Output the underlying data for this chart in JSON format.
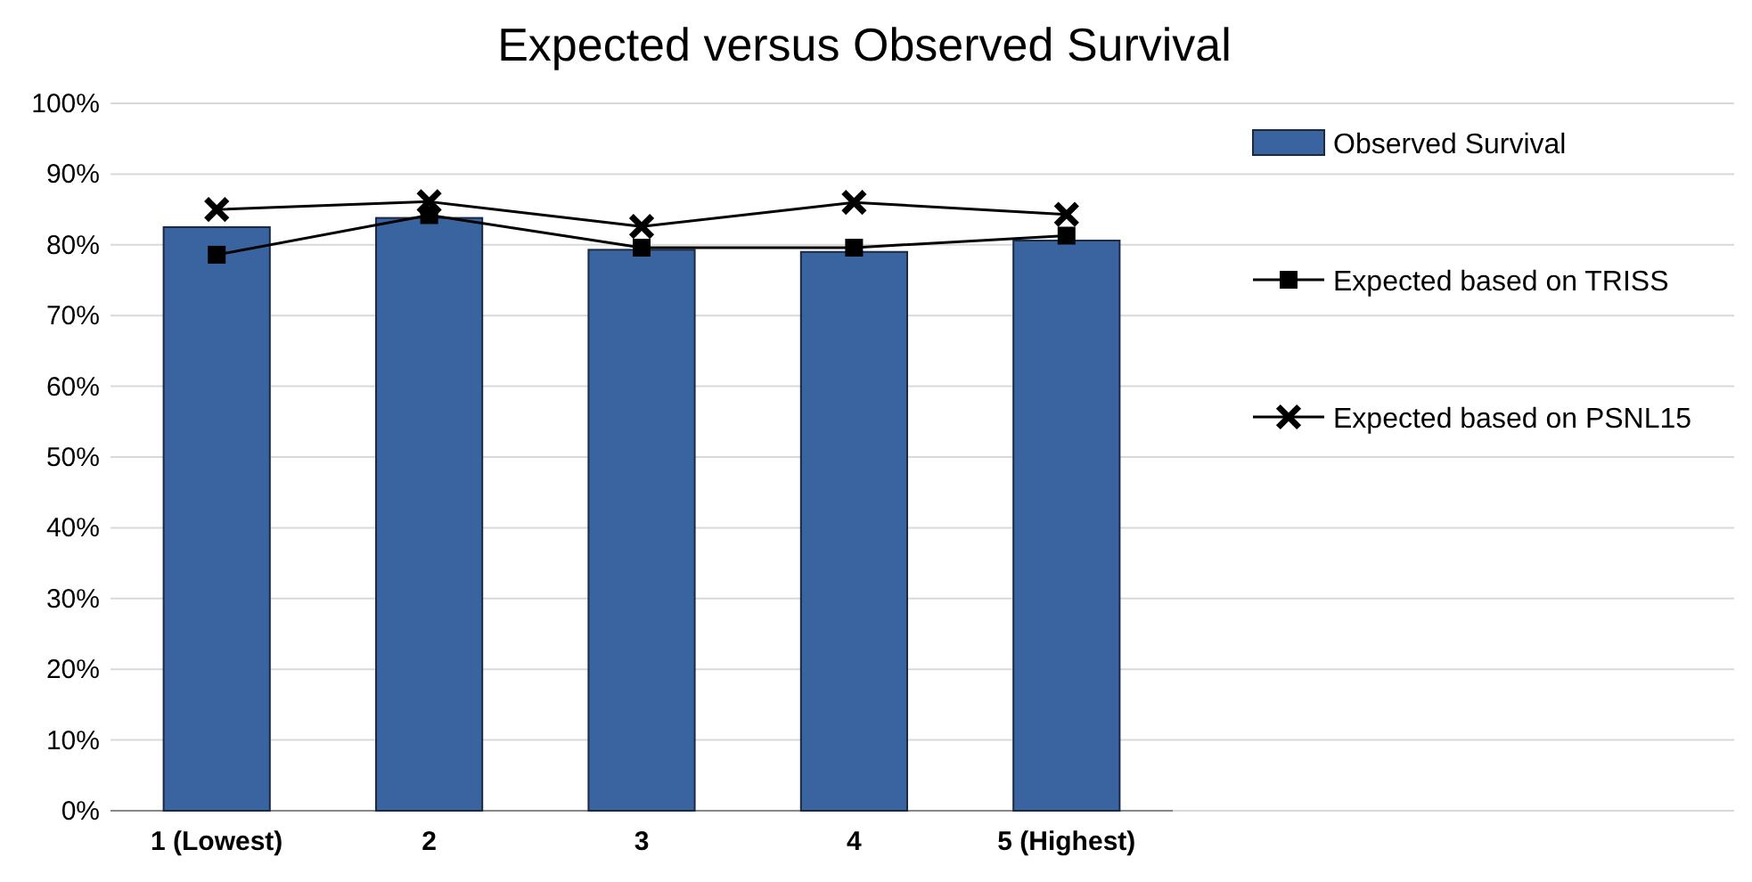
{
  "chart_data": {
    "type": "bar",
    "title": "Expected versus Observed Survival",
    "categories": [
      "1 (Lowest)",
      "2",
      "3",
      "4",
      "5 (Highest)"
    ],
    "series": [
      {
        "name": "Observed Survival",
        "color": "#3a64a0",
        "values": [
          82.5,
          83.8,
          79.3,
          79.0,
          80.6
        ]
      },
      {
        "name": "Expected based on TRISS",
        "type": "line",
        "color": "#000000",
        "marker": "square",
        "values": [
          78.6,
          84.2,
          79.6,
          79.6,
          81.3
        ]
      },
      {
        "name": "Expected based on PSNL15",
        "type": "line",
        "color": "#000000",
        "marker": "cross",
        "values": [
          85.0,
          86.1,
          82.6,
          86.0,
          84.3
        ]
      }
    ],
    "ylim": [
      0,
      100
    ],
    "yticks": [
      {
        "value": 0,
        "label": "0%"
      },
      {
        "value": 10,
        "label": "10%"
      },
      {
        "value": 20,
        "label": "20%"
      },
      {
        "value": 30,
        "label": "30%"
      },
      {
        "value": 40,
        "label": "40%"
      },
      {
        "value": 50,
        "label": "50%"
      },
      {
        "value": 60,
        "label": "60%"
      },
      {
        "value": 70,
        "label": "70%"
      },
      {
        "value": 80,
        "label": "80%"
      },
      {
        "value": 90,
        "label": "90%"
      },
      {
        "value": 100,
        "label": "100%"
      }
    ],
    "grid": "y",
    "legend": "right"
  }
}
